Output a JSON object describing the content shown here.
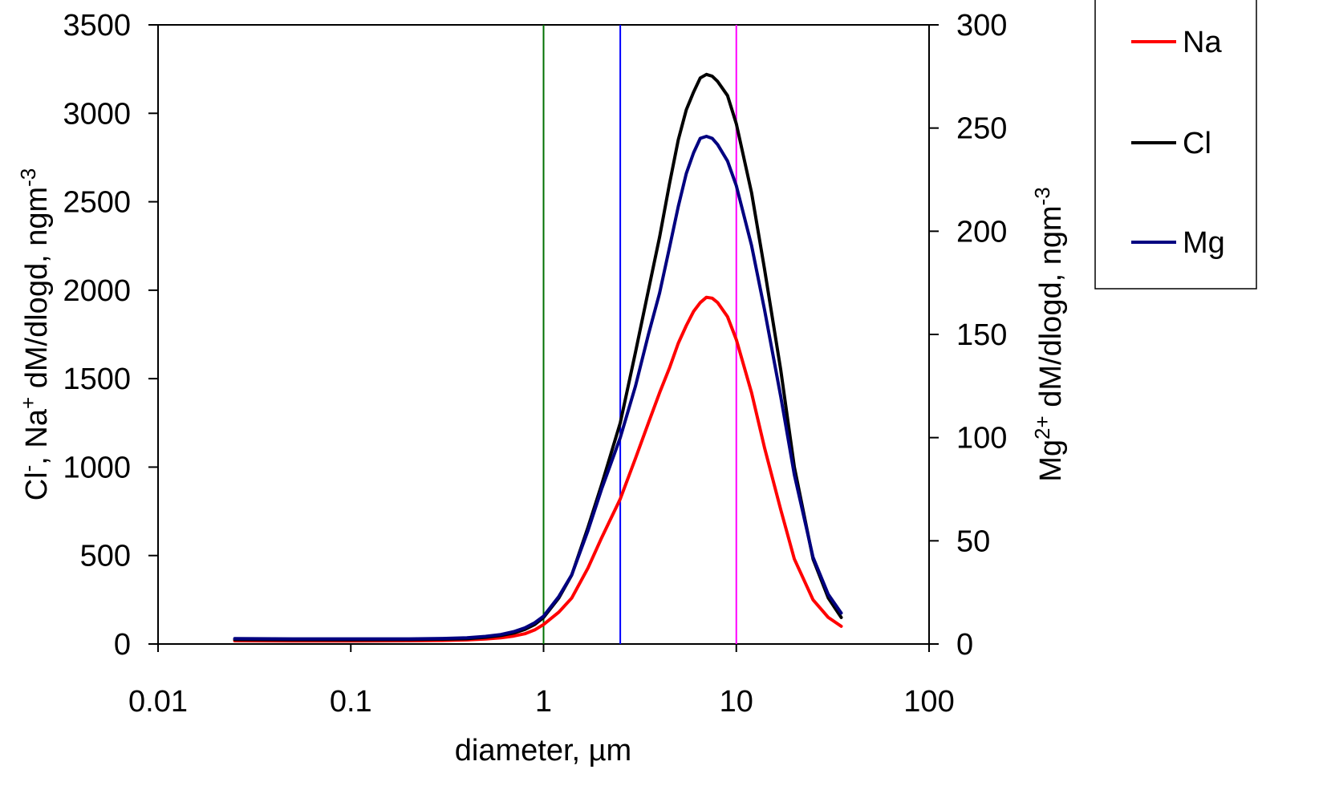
{
  "chart_data": {
    "type": "line",
    "x_scale": "log",
    "xlabel": "diameter, µm",
    "ylabel_left": {
      "segments": [
        "Cl",
        "-",
        ", Na",
        "+",
        " dM/dlogd, ngm",
        "-3"
      ]
    },
    "ylabel_right": {
      "segments": [
        "Mg",
        "2+",
        " dM/dlogd, ngm",
        "-3"
      ]
    },
    "xlim": [
      0.01,
      100
    ],
    "ylim_left": [
      0,
      3500
    ],
    "ylim_right": [
      0,
      300
    ],
    "x_ticks": [
      0.01,
      0.1,
      1,
      10,
      100
    ],
    "x_tick_labels": [
      "0.01",
      "0.1",
      "1",
      "10",
      "100"
    ],
    "y_left_ticks": [
      0,
      500,
      1000,
      1500,
      2000,
      2500,
      3000,
      3500
    ],
    "y_left_tick_labels": [
      "0",
      "500",
      "1000",
      "1500",
      "2000",
      "2500",
      "3000",
      "3500"
    ],
    "y_right_ticks": [
      0,
      50,
      100,
      150,
      200,
      250,
      300
    ],
    "y_right_tick_labels": [
      "0",
      "50",
      "100",
      "150",
      "200",
      "250",
      "300"
    ],
    "grid": false,
    "legend_position": "top-right outside",
    "vertical_lines": [
      {
        "x": 1,
        "color": "#007000"
      },
      {
        "x": 2.5,
        "color": "#0000ff"
      },
      {
        "x": 10,
        "color": "#ff00ff"
      }
    ],
    "series": [
      {
        "name": "Na",
        "color": "#ff0000",
        "axis": "left",
        "x": [
          0.025,
          0.05,
          0.1,
          0.2,
          0.3,
          0.4,
          0.5,
          0.6,
          0.7,
          0.8,
          0.9,
          1.0,
          1.2,
          1.4,
          1.7,
          2.0,
          2.5,
          3.0,
          3.5,
          4.0,
          4.5,
          5.0,
          5.5,
          6.0,
          6.5,
          7.0,
          7.5,
          8.0,
          9.0,
          10.0,
          12.0,
          14.0,
          17.0,
          20.0,
          25.0,
          30.0,
          35.0
        ],
        "y": [
          18,
          17,
          17,
          18,
          20,
          23,
          28,
          35,
          45,
          58,
          80,
          110,
          180,
          260,
          430,
          600,
          820,
          1050,
          1250,
          1420,
          1560,
          1700,
          1800,
          1880,
          1930,
          1960,
          1955,
          1930,
          1850,
          1720,
          1420,
          1110,
          760,
          480,
          250,
          150,
          100
        ]
      },
      {
        "name": "Cl",
        "color": "#000000",
        "axis": "left",
        "x": [
          0.025,
          0.05,
          0.1,
          0.2,
          0.3,
          0.4,
          0.5,
          0.6,
          0.7,
          0.8,
          0.9,
          1.0,
          1.2,
          1.4,
          1.7,
          2.0,
          2.5,
          3.0,
          3.5,
          4.0,
          4.5,
          5.0,
          5.5,
          6.0,
          6.5,
          7.0,
          7.5,
          8.0,
          9.0,
          10.0,
          12.0,
          14.0,
          17.0,
          20.0,
          25.0,
          30.0,
          35.0
        ],
        "y": [
          25,
          24,
          24,
          25,
          27,
          30,
          38,
          48,
          62,
          82,
          110,
          150,
          260,
          390,
          660,
          900,
          1250,
          1650,
          2000,
          2300,
          2600,
          2850,
          3020,
          3120,
          3200,
          3220,
          3210,
          3180,
          3100,
          2940,
          2550,
          2120,
          1550,
          1000,
          480,
          260,
          150
        ]
      },
      {
        "name": "Mg",
        "color": "#000080",
        "axis": "right",
        "x": [
          0.025,
          0.05,
          0.1,
          0.2,
          0.3,
          0.4,
          0.5,
          0.6,
          0.7,
          0.8,
          0.9,
          1.0,
          1.2,
          1.4,
          1.7,
          2.0,
          2.5,
          3.0,
          3.5,
          4.0,
          4.5,
          5.0,
          5.5,
          6.0,
          6.5,
          7.0,
          7.5,
          8.0,
          9.0,
          10.0,
          12.0,
          14.0,
          17.0,
          20.0,
          25.0,
          30.0,
          35.0
        ],
        "y": [
          2.6,
          2.5,
          2.5,
          2.5,
          2.7,
          3.0,
          3.7,
          4.6,
          6.0,
          7.8,
          10.3,
          13.5,
          23,
          33.5,
          55,
          75,
          100,
          125,
          150,
          170,
          192,
          212,
          228,
          238,
          245,
          246,
          245,
          242,
          234,
          222,
          193,
          162,
          120,
          82,
          42,
          24,
          15
        ]
      }
    ]
  }
}
